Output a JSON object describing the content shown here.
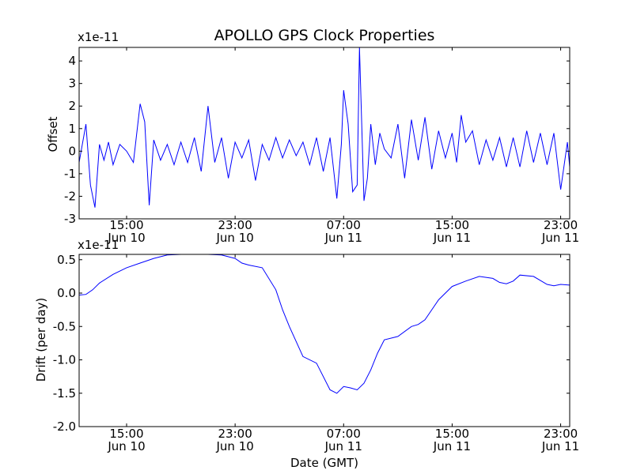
{
  "chart_data": [
    {
      "type": "line",
      "title": "APOLLO GPS Clock Properties",
      "xlabel": "",
      "ylabel": "Offset",
      "y_offset_text": "x1e-11",
      "ylim": [
        -3,
        4.6
      ],
      "yticks": [
        -3,
        -2,
        -1,
        0,
        1,
        2,
        3,
        4
      ],
      "ytick_labels": [
        "-3",
        "-2",
        "-1",
        "0",
        "1",
        "2",
        "3",
        "4"
      ],
      "xlim": [
        "2013-06-10 11:30",
        "2013-06-11 23:40"
      ],
      "xticks": [
        {
          "t": "2013-06-10 15:00",
          "label1": "15:00",
          "label2": "Jun 10"
        },
        {
          "t": "2013-06-10 23:00",
          "label1": "23:00",
          "label2": "Jun 10"
        },
        {
          "t": "2013-06-11 07:00",
          "label1": "07:00",
          "label2": "Jun 11"
        },
        {
          "t": "2013-06-11 15:00",
          "label1": "15:00",
          "label2": "Jun 11"
        },
        {
          "t": "2013-06-11 23:00",
          "label1": "23:00",
          "label2": "Jun 11"
        }
      ],
      "grid": false,
      "color": "#0000ff",
      "series": [
        {
          "x": [
            "2013-06-10 11:30",
            "2013-06-10 12:00",
            "2013-06-10 12:20",
            "2013-06-10 12:40",
            "2013-06-10 13:00",
            "2013-06-10 13:20",
            "2013-06-10 13:40",
            "2013-06-10 14:00",
            "2013-06-10 14:30",
            "2013-06-10 15:00",
            "2013-06-10 15:30",
            "2013-06-10 16:00",
            "2013-06-10 16:20",
            "2013-06-10 16:40",
            "2013-06-10 17:00",
            "2013-06-10 17:30",
            "2013-06-10 18:00",
            "2013-06-10 18:30",
            "2013-06-10 19:00",
            "2013-06-10 19:30",
            "2013-06-10 20:00",
            "2013-06-10 20:30",
            "2013-06-10 21:00",
            "2013-06-10 21:30",
            "2013-06-10 22:00",
            "2013-06-10 22:30",
            "2013-06-10 23:00",
            "2013-06-10 23:30",
            "2013-06-11 00:00",
            "2013-06-11 00:30",
            "2013-06-11 01:00",
            "2013-06-11 01:30",
            "2013-06-11 02:00",
            "2013-06-11 02:30",
            "2013-06-11 03:00",
            "2013-06-11 03:30",
            "2013-06-11 04:00",
            "2013-06-11 04:30",
            "2013-06-11 05:00",
            "2013-06-11 05:30",
            "2013-06-11 06:00",
            "2013-06-11 06:30",
            "2013-06-11 06:50",
            "2013-06-11 07:00",
            "2013-06-11 07:20",
            "2013-06-11 07:40",
            "2013-06-11 08:00",
            "2013-06-11 08:10",
            "2013-06-11 08:30",
            "2013-06-11 08:45",
            "2013-06-11 09:00",
            "2013-06-11 09:20",
            "2013-06-11 09:40",
            "2013-06-11 10:00",
            "2013-06-11 10:30",
            "2013-06-11 11:00",
            "2013-06-11 11:30",
            "2013-06-11 12:00",
            "2013-06-11 12:30",
            "2013-06-11 13:00",
            "2013-06-11 13:30",
            "2013-06-11 14:00",
            "2013-06-11 14:30",
            "2013-06-11 15:00",
            "2013-06-11 15:20",
            "2013-06-11 15:40",
            "2013-06-11 16:00",
            "2013-06-11 16:30",
            "2013-06-11 17:00",
            "2013-06-11 17:30",
            "2013-06-11 18:00",
            "2013-06-11 18:30",
            "2013-06-11 19:00",
            "2013-06-11 19:30",
            "2013-06-11 20:00",
            "2013-06-11 20:30",
            "2013-06-11 21:00",
            "2013-06-11 21:30",
            "2013-06-11 22:00",
            "2013-06-11 22:30",
            "2013-06-11 23:00",
            "2013-06-11 23:30",
            "2013-06-11 23:40"
          ],
          "y": [
            -0.5,
            1.2,
            -1.5,
            -2.5,
            0.3,
            -0.4,
            0.4,
            -0.6,
            0.3,
            0.0,
            -0.5,
            2.1,
            1.3,
            -2.4,
            0.5,
            -0.4,
            0.3,
            -0.6,
            0.4,
            -0.5,
            0.6,
            -0.9,
            2.0,
            -0.5,
            0.6,
            -1.2,
            0.4,
            -0.3,
            0.5,
            -1.3,
            0.3,
            -0.4,
            0.6,
            -0.3,
            0.5,
            -0.2,
            0.4,
            -0.6,
            0.6,
            -0.9,
            0.6,
            -2.1,
            0.3,
            2.7,
            1.2,
            -1.8,
            -1.5,
            4.6,
            -2.2,
            -1.2,
            1.2,
            -0.6,
            0.8,
            0.1,
            -0.3,
            1.2,
            -1.2,
            1.4,
            -0.4,
            1.5,
            -0.8,
            0.9,
            -0.3,
            0.8,
            -0.5,
            1.6,
            0.4,
            0.9,
            -0.6,
            0.5,
            -0.4,
            0.6,
            -0.7,
            0.6,
            -0.7,
            0.9,
            -0.5,
            0.8,
            -0.6,
            0.8,
            -1.7,
            0.4,
            -0.7
          ]
        }
      ]
    },
    {
      "type": "line",
      "title": "",
      "xlabel": "Date (GMT)",
      "ylabel": "Drift (per day)",
      "y_offset_text": "x1e-11",
      "ylim": [
        -2.0,
        0.58
      ],
      "yticks": [
        -2.0,
        -1.5,
        -1.0,
        -0.5,
        0.0,
        0.5
      ],
      "ytick_labels": [
        "-2.0",
        "-1.5",
        "-1.0",
        "-0.5",
        "0.0",
        "0.5"
      ],
      "xlim": [
        "2013-06-10 11:30",
        "2013-06-11 23:40"
      ],
      "xticks": [
        {
          "t": "2013-06-10 15:00",
          "label1": "15:00",
          "label2": "Jun 10"
        },
        {
          "t": "2013-06-10 23:00",
          "label1": "23:00",
          "label2": "Jun 10"
        },
        {
          "t": "2013-06-11 07:00",
          "label1": "07:00",
          "label2": "Jun 11"
        },
        {
          "t": "2013-06-11 15:00",
          "label1": "15:00",
          "label2": "Jun 11"
        },
        {
          "t": "2013-06-11 23:00",
          "label1": "23:00",
          "label2": "Jun 11"
        }
      ],
      "grid": false,
      "color": "#0000ff",
      "series": [
        {
          "x": [
            "2013-06-10 11:30",
            "2013-06-10 12:00",
            "2013-06-10 12:30",
            "2013-06-10 13:00",
            "2013-06-10 14:00",
            "2013-06-10 15:00",
            "2013-06-10 16:00",
            "2013-06-10 17:00",
            "2013-06-10 18:00",
            "2013-06-10 19:00",
            "2013-06-10 20:00",
            "2013-06-10 21:00",
            "2013-06-10 22:00",
            "2013-06-10 23:00",
            "2013-06-10 23:30",
            "2013-06-11 00:00",
            "2013-06-11 01:00",
            "2013-06-11 02:00",
            "2013-06-11 02:30",
            "2013-06-11 03:00",
            "2013-06-11 04:00",
            "2013-06-11 05:00",
            "2013-06-11 06:00",
            "2013-06-11 06:30",
            "2013-06-11 07:00",
            "2013-06-11 07:30",
            "2013-06-11 08:00",
            "2013-06-11 08:30",
            "2013-06-11 09:00",
            "2013-06-11 09:30",
            "2013-06-11 10:00",
            "2013-06-11 11:00",
            "2013-06-11 12:00",
            "2013-06-11 12:30",
            "2013-06-11 13:00",
            "2013-06-11 13:30",
            "2013-06-11 14:00",
            "2013-06-11 15:00",
            "2013-06-11 16:00",
            "2013-06-11 17:00",
            "2013-06-11 18:00",
            "2013-06-11 18:30",
            "2013-06-11 19:00",
            "2013-06-11 19:30",
            "2013-06-11 20:00",
            "2013-06-11 21:00",
            "2013-06-11 22:00",
            "2013-06-11 22:30",
            "2013-06-11 23:00",
            "2013-06-11 23:40"
          ],
          "y": [
            -0.03,
            -0.02,
            0.05,
            0.15,
            0.28,
            0.38,
            0.45,
            0.52,
            0.57,
            0.59,
            0.6,
            0.58,
            0.57,
            0.52,
            0.45,
            0.42,
            0.38,
            0.05,
            -0.25,
            -0.5,
            -0.95,
            -1.05,
            -1.45,
            -1.5,
            -1.4,
            -1.42,
            -1.45,
            -1.35,
            -1.15,
            -0.9,
            -0.7,
            -0.65,
            -0.5,
            -0.47,
            -0.4,
            -0.25,
            -0.1,
            0.1,
            0.18,
            0.25,
            0.22,
            0.16,
            0.14,
            0.18,
            0.27,
            0.25,
            0.13,
            0.11,
            0.13,
            0.12
          ]
        }
      ]
    }
  ]
}
